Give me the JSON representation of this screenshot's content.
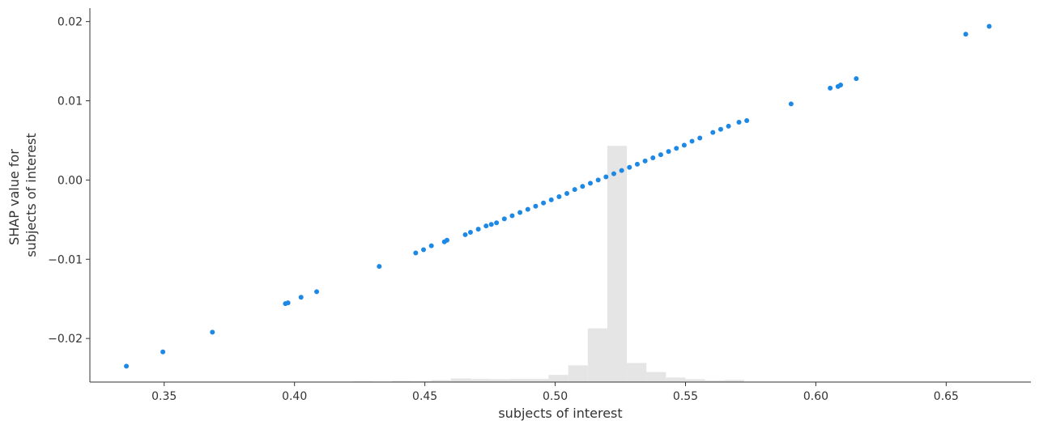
{
  "chart_data": {
    "type": "scatter",
    "title": "",
    "xlabel": "subjects of interest",
    "ylabel_lines": [
      "SHAP value for",
      "subjects of interest"
    ],
    "xlim": [
      0.3215,
      0.6825
    ],
    "ylim": [
      -0.0255,
      0.0217
    ],
    "xticks": [
      0.35,
      0.4,
      0.45,
      0.5,
      0.55,
      0.6,
      0.65
    ],
    "xtick_labels": [
      "0.35",
      "0.40",
      "0.45",
      "0.50",
      "0.55",
      "0.60",
      "0.65"
    ],
    "yticks": [
      -0.02,
      -0.01,
      0.0,
      0.01,
      0.02
    ],
    "ytick_labels": [
      "−0.02",
      "−0.01",
      "0.00",
      "0.01",
      "0.02"
    ],
    "grid": false,
    "point_color": "#1e88e5",
    "hist_color": "#e5e5e5",
    "histogram": {
      "bin_edges": [
        0.4225,
        0.43,
        0.4375,
        0.445,
        0.4525,
        0.46,
        0.4675,
        0.475,
        0.4825,
        0.49,
        0.4975,
        0.505,
        0.5125,
        0.52,
        0.5275,
        0.535,
        0.5425,
        0.55,
        0.5575,
        0.565,
        0.5725
      ],
      "relative_heights": [
        0.003,
        0.002,
        0.005,
        0.004,
        0.008,
        0.015,
        0.013,
        0.012,
        0.013,
        0.013,
        0.03,
        0.07,
        0.225,
        0.99,
        0.08,
        0.042,
        0.019,
        0.012,
        0.007,
        0.009
      ]
    },
    "series": [
      {
        "x": [
          0.3355,
          0.3495,
          0.3685,
          0.3965,
          0.3975,
          0.4025,
          0.4085,
          0.4325,
          0.4465,
          0.4495,
          0.4525,
          0.4575,
          0.4585,
          0.4655,
          0.4675,
          0.4705,
          0.4735,
          0.4755,
          0.4775,
          0.4805,
          0.4835,
          0.4865,
          0.4895,
          0.4925,
          0.4955,
          0.4985,
          0.5015,
          0.5045,
          0.5075,
          0.5105,
          0.5135,
          0.5165,
          0.5195,
          0.5225,
          0.5255,
          0.5285,
          0.5315,
          0.5345,
          0.5375,
          0.5405,
          0.5435,
          0.5465,
          0.5495,
          0.5525,
          0.5555,
          0.5605,
          0.5635,
          0.5665,
          0.5705,
          0.5735,
          0.5905,
          0.6055,
          0.6085,
          0.6095,
          0.6155,
          0.6575,
          0.6665
        ],
        "y": [
          -0.0235,
          -0.0217,
          -0.0192,
          -0.0156,
          -0.0155,
          -0.0148,
          -0.0141,
          -0.0109,
          -0.0092,
          -0.0088,
          -0.0083,
          -0.0078,
          -0.0076,
          -0.0069,
          -0.0066,
          -0.0062,
          -0.0058,
          -0.0056,
          -0.0054,
          -0.0049,
          -0.0045,
          -0.0041,
          -0.0037,
          -0.0033,
          -0.0029,
          -0.0025,
          -0.0021,
          -0.0017,
          -0.0012,
          -0.0008,
          -0.0004,
          0.0,
          0.0004,
          0.0008,
          0.0012,
          0.0016,
          0.002,
          0.0024,
          0.0028,
          0.0032,
          0.0036,
          0.004,
          0.0044,
          0.0049,
          0.0053,
          0.006,
          0.0064,
          0.0068,
          0.0073,
          0.0075,
          0.0096,
          0.0116,
          0.0118,
          0.012,
          0.0128,
          0.0184,
          0.0194
        ]
      }
    ]
  }
}
